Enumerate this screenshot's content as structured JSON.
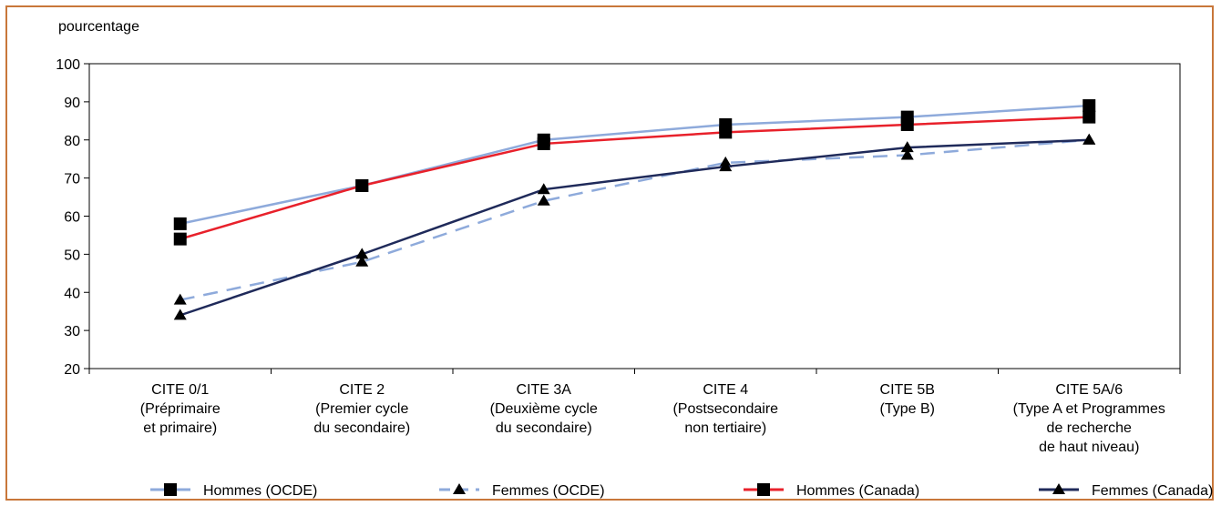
{
  "chart_data": {
    "type": "line",
    "ylabel": "pourcentage",
    "ylim": [
      20,
      100
    ],
    "yticks": [
      20,
      30,
      40,
      50,
      60,
      70,
      80,
      90,
      100
    ],
    "grid": false,
    "legend_position": "bottom",
    "categories": [
      [
        "CITE 0/1",
        "(Préprimaire",
        "et primaire)"
      ],
      [
        "CITE 2",
        "(Premier cycle",
        "du secondaire)"
      ],
      [
        "CITE 3A",
        "(Deuxième cycle",
        "du secondaire)"
      ],
      [
        "CITE 4",
        "(Postsecondaire",
        "non tertiaire)"
      ],
      [
        "CITE 5B",
        "(Type B)"
      ],
      [
        "CITE 5A/6",
        "(Type A et Programmes",
        "de recherche",
        "de haut niveau)"
      ]
    ],
    "series": [
      {
        "name": "Hommes (OCDE)",
        "values": [
          58,
          68,
          80,
          84,
          86,
          89
        ],
        "color": "#8eaadb",
        "dash": false,
        "marker": "square"
      },
      {
        "name": "Femmes (OCDE)",
        "values": [
          38,
          48,
          64,
          74,
          76,
          80
        ],
        "color": "#8eaadb",
        "dash": true,
        "marker": "triangle"
      },
      {
        "name": "Hommes (Canada)",
        "values": [
          54,
          68,
          79,
          82,
          84,
          86
        ],
        "color": "#e8212b",
        "dash": false,
        "marker": "square"
      },
      {
        "name": "Femmes (Canada)",
        "values": [
          34,
          50,
          67,
          73,
          78,
          80
        ],
        "color": "#1f2a5a",
        "dash": false,
        "marker": "triangle"
      }
    ]
  }
}
